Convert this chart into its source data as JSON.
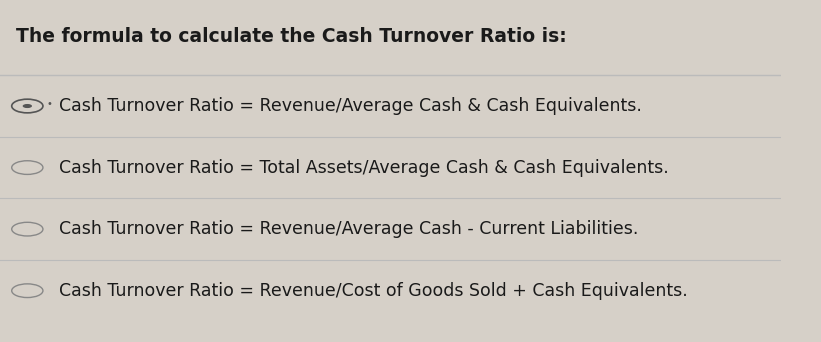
{
  "title": "The formula to calculate the Cash Turnover Ratio is:",
  "title_fontsize": 13.5,
  "title_color": "#1a1a1a",
  "background_color": "#d6d0c8",
  "options": [
    "Cash Turnover Ratio = Revenue/Average Cash & Cash Equivalents.",
    "Cash Turnover Ratio = Total Assets/Average Cash & Cash Equivalents.",
    "Cash Turnover Ratio = Revenue/Average Cash - Current Liabilities.",
    "Cash Turnover Ratio = Revenue/Cost of Goods Sold + Cash Equivalents."
  ],
  "option_fontsize": 12.5,
  "option_color": "#1a1a1a",
  "selected_index": 0,
  "circle_color": "#888888",
  "selected_circle_color": "#555555",
  "divider_color": "#bbbbbb",
  "row_bg_colors": [
    "#d6d0c8",
    "#d6d0c8",
    "#d6d0c8",
    "#d6d0c8"
  ]
}
